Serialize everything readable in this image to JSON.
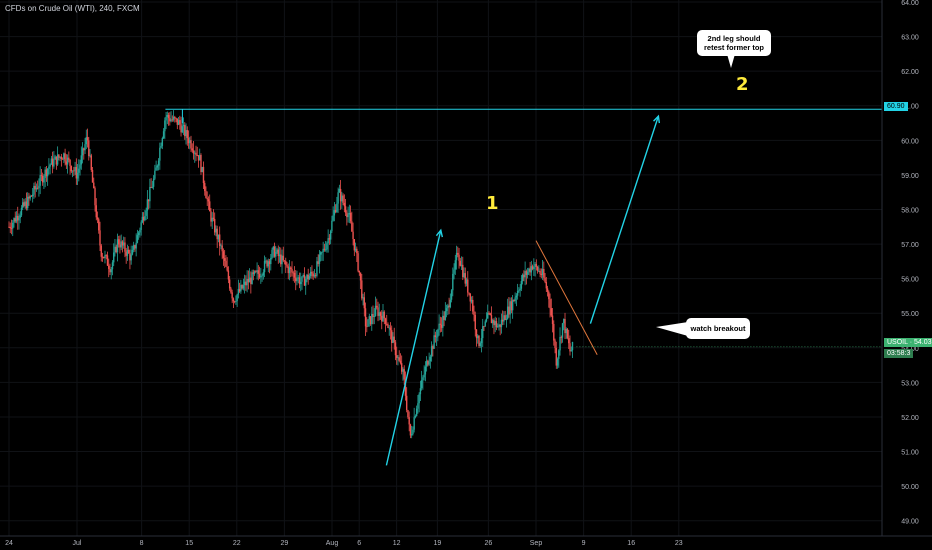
{
  "header": {
    "title": "CFDs on Crude Oil (WTI), 240, FXCM"
  },
  "callouts": {
    "leg2_line1": "2nd leg should",
    "leg2_line2": "retest former top",
    "breakout": "watch breakout"
  },
  "waves": {
    "first": "1",
    "second": "2"
  },
  "price_boxes": {
    "resistance_level": "60.90",
    "last_symbol": "USOIL · 54.03",
    "countdown": "03:58:3"
  },
  "colors": {
    "up": "#26a69a",
    "down": "#ef5350",
    "projection": "#22d3e6",
    "resistance": "#22d3e6",
    "trendline": "#e0763c",
    "last_price": "#3cb371",
    "axis_text": "#b2b5be",
    "wave_label": "#ffeb3b"
  },
  "chart_data": {
    "type": "candlestick",
    "symbol": "USOIL",
    "timeframe": "240",
    "ylim": [
      48.5,
      64.0
    ],
    "y_ticks": [
      49.0,
      50.0,
      51.0,
      52.0,
      53.0,
      54.0,
      55.0,
      56.0,
      57.0,
      58.0,
      59.0,
      60.0,
      61.0,
      62.0,
      63.0,
      64.0
    ],
    "x_ticks": [
      "24",
      "Jul",
      "8",
      "15",
      "22",
      "29",
      "Aug",
      "6",
      "12",
      "19",
      "26",
      "Sep",
      "9",
      "16",
      "23"
    ],
    "price_path": [
      {
        "d": 0,
        "p": 57.5
      },
      {
        "d": 3,
        "p": 58.3
      },
      {
        "d": 6,
        "p": 59.3
      },
      {
        "d": 8,
        "p": 59.6
      },
      {
        "d": 10,
        "p": 59.0
      },
      {
        "d": 11.5,
        "p": 60.1
      },
      {
        "d": 12.5,
        "p": 58.4
      },
      {
        "d": 13.5,
        "p": 56.8
      },
      {
        "d": 15,
        "p": 56.3
      },
      {
        "d": 16,
        "p": 57.1
      },
      {
        "d": 18,
        "p": 56.6
      },
      {
        "d": 20,
        "p": 58.0
      },
      {
        "d": 21.5,
        "p": 59.0
      },
      {
        "d": 23,
        "p": 60.7
      },
      {
        "d": 25,
        "p": 60.5
      },
      {
        "d": 26.5,
        "p": 60.0
      },
      {
        "d": 28,
        "p": 59.5
      },
      {
        "d": 29.5,
        "p": 57.9
      },
      {
        "d": 31,
        "p": 57.0
      },
      {
        "d": 33,
        "p": 55.4
      },
      {
        "d": 35,
        "p": 55.9
      },
      {
        "d": 37,
        "p": 56.2
      },
      {
        "d": 39,
        "p": 56.8
      },
      {
        "d": 41,
        "p": 56.3
      },
      {
        "d": 43,
        "p": 55.9
      },
      {
        "d": 45,
        "p": 56.2
      },
      {
        "d": 47,
        "p": 57.2
      },
      {
        "d": 48.5,
        "p": 58.5
      },
      {
        "d": 50,
        "p": 57.8
      },
      {
        "d": 51.5,
        "p": 56.2
      },
      {
        "d": 52.5,
        "p": 54.6
      },
      {
        "d": 54,
        "p": 55.1
      },
      {
        "d": 55.5,
        "p": 54.8
      },
      {
        "d": 57,
        "p": 53.8
      },
      {
        "d": 58,
        "p": 53.2
      },
      {
        "d": 59,
        "p": 51.4
      },
      {
        "d": 60,
        "p": 52.4
      },
      {
        "d": 61.5,
        "p": 53.6
      },
      {
        "d": 63,
        "p": 54.5
      },
      {
        "d": 64.5,
        "p": 55.1
      },
      {
        "d": 66,
        "p": 56.8
      },
      {
        "d": 67,
        "p": 56.0
      },
      {
        "d": 68,
        "p": 55.4
      },
      {
        "d": 69,
        "p": 54.1
      },
      {
        "d": 70.5,
        "p": 54.9
      },
      {
        "d": 72,
        "p": 54.6
      },
      {
        "d": 74,
        "p": 55.3
      },
      {
        "d": 75.5,
        "p": 56.0
      },
      {
        "d": 77,
        "p": 56.4
      },
      {
        "d": 78.5,
        "p": 56.1
      },
      {
        "d": 79.5,
        "p": 55.4
      },
      {
        "d": 80.5,
        "p": 53.6
      },
      {
        "d": 81.5,
        "p": 54.8
      },
      {
        "d": 82.5,
        "p": 53.9
      },
      {
        "d": 83,
        "p": 54.03
      }
    ],
    "annotations": {
      "resistance_price": 60.9,
      "wave1_arrow": {
        "from_d": 55.5,
        "from_p": 50.6,
        "to_d": 63.5,
        "to_p": 57.4
      },
      "wave2_arrow": {
        "from_d": 85.5,
        "from_p": 54.7,
        "to_d": 95.5,
        "to_p": 60.7
      },
      "trendline": {
        "from_d": 77.5,
        "from_p": 57.1,
        "to_d": 86.5,
        "to_p": 53.8
      }
    }
  }
}
